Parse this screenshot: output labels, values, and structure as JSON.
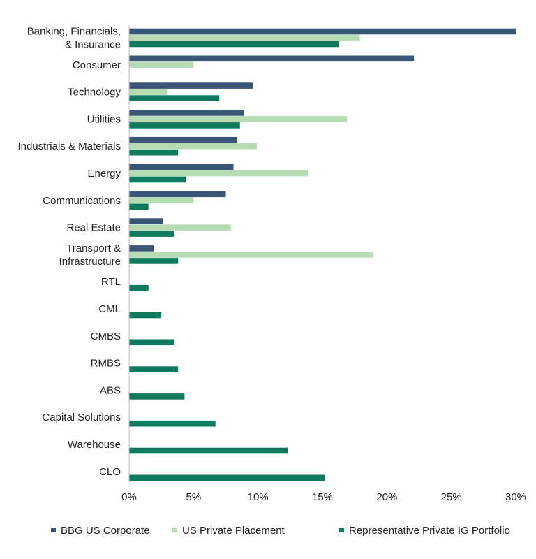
{
  "chart_data": {
    "type": "bar",
    "orientation": "horizontal",
    "categories": [
      [
        "Banking, Financials,",
        "& Insurance"
      ],
      [
        "Consumer"
      ],
      [
        "Technology"
      ],
      [
        "Utilities"
      ],
      [
        "Industrials & Materials"
      ],
      [
        "Energy"
      ],
      [
        "Communications"
      ],
      [
        "Real Estate"
      ],
      [
        "Transport &",
        "Infrastructure"
      ],
      [
        "RTL"
      ],
      [
        "CML"
      ],
      [
        "CMBS"
      ],
      [
        "RMBS"
      ],
      [
        "ABS"
      ],
      [
        "Capital Solutions"
      ],
      [
        "Warehouse"
      ],
      [
        "CLO"
      ]
    ],
    "series": [
      {
        "name": "BBG US Corporate",
        "color": "#3a5676",
        "values": [
          30.0,
          22.1,
          9.6,
          8.9,
          8.4,
          8.1,
          7.5,
          2.6,
          1.9,
          0,
          0,
          0,
          0,
          0,
          0,
          0,
          0
        ]
      },
      {
        "name": "US Private Placement",
        "color": "#b6dcb3",
        "values": [
          17.9,
          5.0,
          3.0,
          16.9,
          9.9,
          13.9,
          5.0,
          7.9,
          18.9,
          0,
          0,
          0,
          0,
          0,
          0,
          0,
          0
        ]
      },
      {
        "name": "Representative Private IG Portfolio",
        "color": "#0f7a5e",
        "values": [
          16.3,
          0,
          7.0,
          8.6,
          3.8,
          4.4,
          1.5,
          3.5,
          3.8,
          1.5,
          2.5,
          3.5,
          3.8,
          4.3,
          6.7,
          12.3,
          15.2
        ]
      }
    ],
    "xlim": [
      0,
      30
    ],
    "xticks": [
      0,
      5,
      10,
      15,
      20,
      25,
      30
    ],
    "tick_suffix": "%",
    "grid": false,
    "legend": "bottom"
  }
}
